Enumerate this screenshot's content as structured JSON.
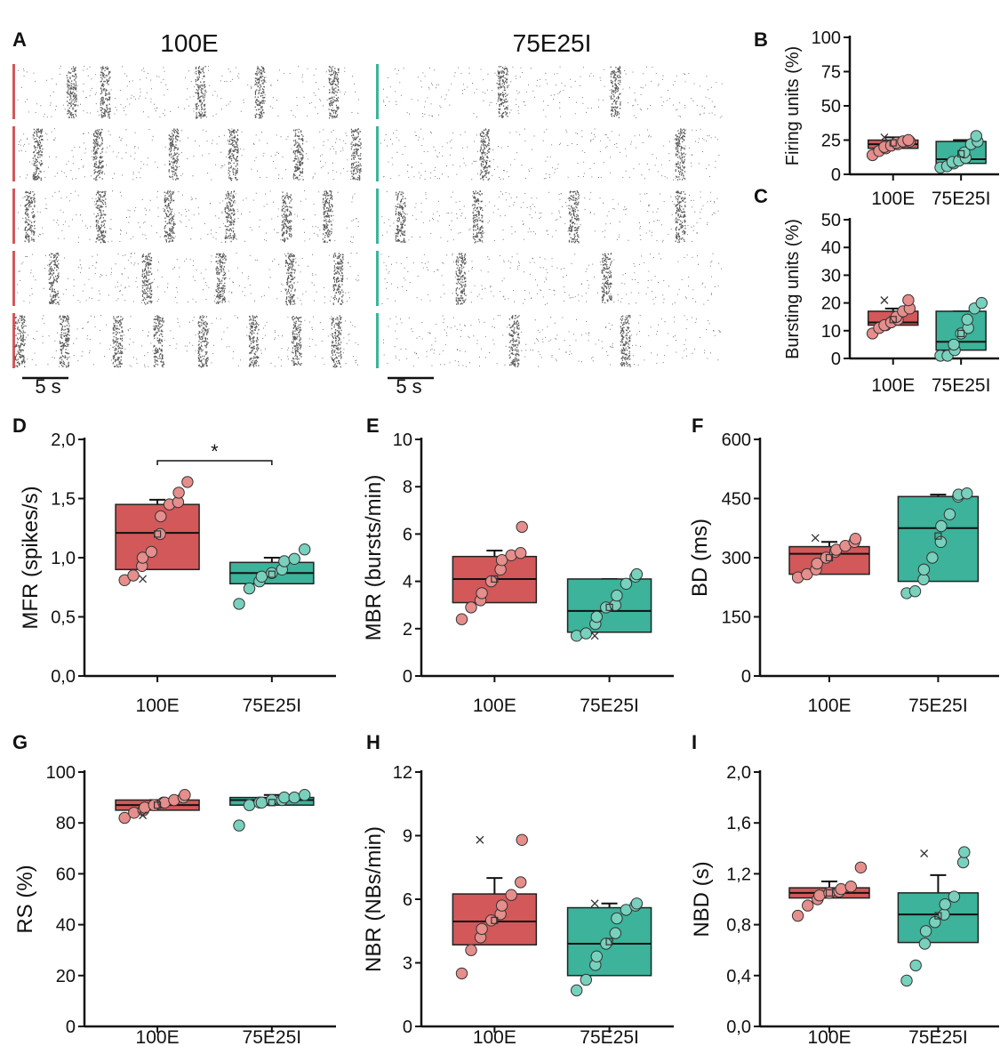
{
  "colors": {
    "100E": "#d2585a",
    "100E_point": "#e58e8c",
    "75E25I": "#3cb39a",
    "75E25I_point": "#78d1bd",
    "axis": "#111111"
  },
  "raster": {
    "titles": {
      "left": "100E",
      "right": "75E25I"
    },
    "scale_bar_label": "5 s"
  },
  "chart_data": [
    {
      "id": "B",
      "panel_label": "B",
      "type": "box",
      "ylabel": "Firing units (%)",
      "ylim": [
        0,
        100
      ],
      "yticks": [
        "0",
        "25",
        "50",
        "75",
        "100"
      ],
      "categories": [
        "100E",
        "75E25I"
      ],
      "boxes": [
        {
          "q1": 19,
          "median": 22,
          "q3": 25,
          "whisker_high": 27,
          "mean": 23,
          "outlier": 27,
          "points": [
            14,
            17,
            19,
            20,
            21,
            22,
            23,
            24,
            24,
            25
          ]
        },
        {
          "q1": 8,
          "median": 11,
          "q3": 24,
          "whisker_high": 25,
          "mean": 15,
          "outlier": null,
          "points": [
            5,
            6,
            8,
            9,
            10,
            12,
            16,
            22,
            24,
            28
          ]
        }
      ]
    },
    {
      "id": "C",
      "panel_label": "C",
      "type": "box",
      "ylabel": "Bursting units (%)",
      "ylim": [
        0,
        50
      ],
      "yticks": [
        "0",
        "10",
        "20",
        "30",
        "40",
        "50"
      ],
      "categories": [
        "100E",
        "75E25I"
      ],
      "boxes": [
        {
          "q1": 12,
          "median": 13,
          "q3": 17,
          "whisker_high": 18,
          "mean": 14,
          "outlier": 21,
          "points": [
            9,
            11,
            12,
            12,
            13,
            14,
            15,
            17,
            18,
            21
          ]
        },
        {
          "q1": 3,
          "median": 6,
          "q3": 17,
          "whisker_high": 17,
          "mean": 9,
          "outlier": null,
          "points": [
            1,
            1,
            3,
            5,
            9,
            11,
            14,
            18,
            20
          ]
        }
      ]
    },
    {
      "id": "D",
      "panel_label": "D",
      "type": "box",
      "ylabel": "MFR (spikes/s)",
      "ylim": [
        0,
        2.0
      ],
      "yticks": [
        "0,0",
        "0,5",
        "1,0",
        "1,5",
        "2,0"
      ],
      "categories": [
        "100E",
        "75E25I"
      ],
      "significance": "*",
      "boxes": [
        {
          "q1": 0.9,
          "median": 1.21,
          "q3": 1.45,
          "whisker_high": 1.49,
          "mean": 1.2,
          "outlier": 0.82,
          "points": [
            0.81,
            0.85,
            0.93,
            1.0,
            1.05,
            1.2,
            1.35,
            1.45,
            1.47,
            1.55,
            1.64
          ]
        },
        {
          "q1": 0.78,
          "median": 0.87,
          "q3": 0.96,
          "whisker_high": 1.0,
          "mean": 0.86,
          "outlier": null,
          "points": [
            0.61,
            0.74,
            0.8,
            0.84,
            0.87,
            0.9,
            0.97,
            0.99,
            1.07
          ]
        }
      ]
    },
    {
      "id": "E",
      "panel_label": "E",
      "type": "box",
      "ylabel": "MBR (bursts/min)",
      "ylim": [
        0,
        10
      ],
      "yticks": [
        "0",
        "2",
        "4",
        "6",
        "8",
        "10"
      ],
      "categories": [
        "100E",
        "75E25I"
      ],
      "boxes": [
        {
          "q1": 3.1,
          "median": 4.1,
          "q3": 5.05,
          "whisker_high": 5.3,
          "mean": 4.1,
          "outlier": null,
          "points": [
            2.4,
            2.9,
            3.2,
            3.5,
            4.0,
            4.5,
            4.9,
            5.1,
            5.2,
            6.3
          ]
        },
        {
          "q1": 1.85,
          "median": 2.75,
          "q3": 4.1,
          "whisker_high": 4.1,
          "mean": 2.9,
          "outlier": 1.7,
          "points": [
            1.7,
            1.8,
            2.2,
            2.5,
            2.9,
            3.0,
            3.4,
            3.9,
            4.2,
            4.3
          ]
        }
      ]
    },
    {
      "id": "F",
      "panel_label": "F",
      "type": "box",
      "ylabel": "BD (ms)",
      "ylim": [
        0,
        600
      ],
      "yticks": [
        "0",
        "150",
        "300",
        "450",
        "600"
      ],
      "categories": [
        "100E",
        "75E25I"
      ],
      "boxes": [
        {
          "q1": 258,
          "median": 310,
          "q3": 328,
          "whisker_high": 340,
          "mean": 300,
          "outlier": 350,
          "points": [
            250,
            258,
            270,
            285,
            300,
            315,
            320,
            330,
            340,
            348
          ]
        },
        {
          "q1": 240,
          "median": 375,
          "q3": 455,
          "whisker_high": 460,
          "mean": 355,
          "outlier": null,
          "points": [
            210,
            215,
            245,
            270,
            300,
            340,
            380,
            410,
            455,
            460,
            463
          ]
        }
      ]
    },
    {
      "id": "G",
      "panel_label": "G",
      "type": "box",
      "ylabel": "RS (%)",
      "ylim": [
        0,
        100
      ],
      "yticks": [
        "0",
        "20",
        "40",
        "60",
        "80",
        "100"
      ],
      "categories": [
        "100E",
        "75E25I"
      ],
      "boxes": [
        {
          "q1": 85,
          "median": 87,
          "q3": 89,
          "whisker_high": 89,
          "mean": 87,
          "outlier": 83,
          "points": [
            82,
            84,
            85,
            86,
            87,
            88,
            88,
            89,
            90,
            91
          ]
        },
        {
          "q1": 87,
          "median": 89,
          "q3": 90,
          "whisker_high": 91,
          "mean": 88,
          "outlier": null,
          "points": [
            79,
            87,
            88,
            88,
            89,
            89,
            90,
            90,
            91
          ]
        }
      ]
    },
    {
      "id": "H",
      "panel_label": "H",
      "type": "box",
      "ylabel": "NBR (NBs/min)",
      "ylim": [
        0,
        12
      ],
      "yticks": [
        "0",
        "3",
        "6",
        "9",
        "12"
      ],
      "categories": [
        "100E",
        "75E25I"
      ],
      "boxes": [
        {
          "q1": 3.85,
          "median": 4.95,
          "q3": 6.25,
          "whisker_high": 7.0,
          "mean": 5.0,
          "outlier": 8.8,
          "points": [
            2.5,
            3.6,
            4.2,
            4.6,
            5.0,
            5.3,
            5.7,
            6.2,
            6.8,
            8.8
          ]
        },
        {
          "q1": 2.4,
          "median": 3.9,
          "q3": 5.6,
          "whisker_high": 5.8,
          "mean": 4.0,
          "outlier": 5.8,
          "points": [
            1.7,
            2.2,
            2.9,
            3.3,
            3.9,
            4.4,
            5.1,
            5.5,
            5.7,
            5.8
          ]
        }
      ]
    },
    {
      "id": "I",
      "panel_label": "I",
      "type": "box",
      "ylabel": "NBD (s)",
      "ylim": [
        0,
        2.0
      ],
      "yticks": [
        "0,0",
        "0,4",
        "0,8",
        "1,2",
        "1,6",
        "2,0"
      ],
      "categories": [
        "100E",
        "75E25I"
      ],
      "boxes": [
        {
          "q1": 1.01,
          "median": 1.05,
          "q3": 1.09,
          "whisker_high": 1.14,
          "mean": 1.05,
          "outlier": null,
          "points": [
            0.87,
            0.95,
            1.0,
            1.03,
            1.05,
            1.06,
            1.08,
            1.1,
            1.25
          ]
        },
        {
          "q1": 0.66,
          "median": 0.88,
          "q3": 1.05,
          "whisker_high": 1.19,
          "mean": 0.87,
          "outlier": 1.36,
          "points": [
            0.36,
            0.48,
            0.65,
            0.75,
            0.82,
            0.88,
            0.96,
            1.02,
            1.29,
            1.37
          ]
        }
      ]
    }
  ]
}
